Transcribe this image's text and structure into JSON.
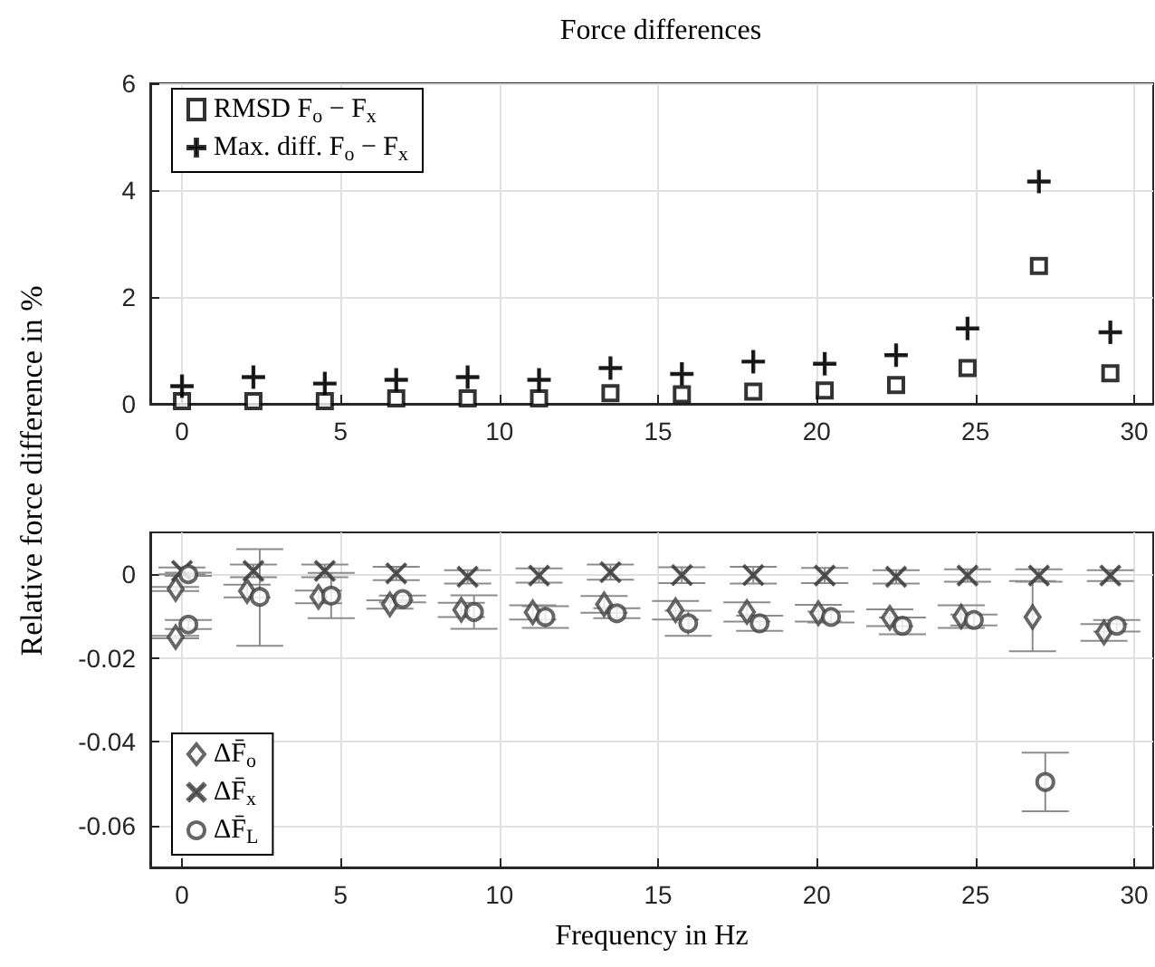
{
  "chart_data": [
    {
      "type": "scatter",
      "title": "Force differences",
      "ylabel": "Relative force difference in %",
      "xlim": [
        -1,
        30.6
      ],
      "xticks": [
        0,
        5,
        10,
        15,
        20,
        25,
        30
      ],
      "ylim": [
        0,
        6
      ],
      "yticks": [
        0,
        2,
        4,
        6
      ],
      "grid": true,
      "legend": "top left",
      "x": [
        0,
        2.25,
        4.5,
        6.75,
        9,
        11.25,
        13.5,
        15.75,
        18,
        20.25,
        22.5,
        24.75,
        27,
        29.25
      ],
      "series": [
        {
          "name": "RMSD F$_{o}$ − F$_{x}$",
          "color": "#000000",
          "marker": "square",
          "values": [
            0.05,
            0.05,
            0.05,
            0.1,
            0.1,
            0.1,
            0.2,
            0.18,
            0.23,
            0.25,
            0.35,
            0.67,
            2.58,
            0.57
          ]
        },
        {
          "name": "Max. diff. F$_{o}$ − F$_{x}$",
          "color": "#000000",
          "marker": "cross",
          "values": [
            0.33,
            0.5,
            0.38,
            0.45,
            0.5,
            0.45,
            0.67,
            0.56,
            0.79,
            0.75,
            0.91,
            1.41,
            4.16,
            1.34
          ]
        }
      ]
    },
    {
      "type": "scatter",
      "xlabel": "Frequency in Hz",
      "xlim": [
        -1,
        30.6
      ],
      "xticks": [
        0,
        5,
        10,
        15,
        20,
        25,
        30
      ],
      "ylim": [
        -0.07,
        0.01
      ],
      "yticks": [
        0,
        -0.02,
        -0.04,
        -0.06
      ],
      "grid": true,
      "legend": "bottom left",
      "series": [
        {
          "name": "ΔF̄$_{o}$",
          "color": "#404040",
          "marker": "diamond",
          "x": [
            -0.2,
            -0.2,
            2.05,
            4.3,
            6.55,
            8.8,
            11.05,
            13.3,
            15.55,
            17.8,
            20.05,
            22.3,
            24.55,
            26.8,
            29.05
          ],
          "values": [
            -0.0035,
            -0.015,
            -0.004,
            -0.0054,
            -0.0072,
            -0.0085,
            -0.0091,
            -0.0072,
            -0.0086,
            -0.009,
            -0.0093,
            -0.0104,
            -0.0101,
            -0.0102,
            -0.0139
          ],
          "errors": [
            0.0005,
            0.0003,
            0.0015,
            0.0015,
            0.001,
            0.0017,
            0.0017,
            0.002,
            0.0022,
            0.0023,
            0.002,
            0.002,
            0.0027,
            [
              -0.0184,
              -0.0016
            ],
            0.002
          ]
        },
        {
          "name": "ΔF̄$_{x}$",
          "color": "#404040",
          "marker": "x",
          "x": [
            0,
            2.25,
            4.5,
            6.75,
            9,
            11.25,
            13.5,
            15.75,
            18,
            20.25,
            22.5,
            24.75,
            27,
            29.25
          ],
          "values": [
            0.0008,
            0.0008,
            0.0008,
            0.0002,
            -0.0006,
            -0.0003,
            0.0005,
            -0.0002,
            -0.0002,
            -0.0003,
            -0.0006,
            -0.0003,
            -0.0003,
            -0.0003
          ],
          "errors": [
            0.0008,
            0.0015,
            0.0015,
            0.0016,
            0.0016,
            0.0017,
            0.0018,
            0.0019,
            0.002,
            0.0018,
            0.0016,
            0.0015,
            0.0015,
            0.0013
          ]
        },
        {
          "name": "ΔF̄$_{L}$",
          "color": "#404040",
          "marker": "circle",
          "x": [
            0.2,
            0.2,
            2.45,
            4.7,
            6.95,
            9.2,
            11.45,
            13.7,
            15.95,
            18.2,
            20.45,
            22.7,
            24.95,
            27.2,
            29.45
          ],
          "values": [
            0,
            -0.012,
            -0.0054,
            -0.0051,
            -0.0059,
            -0.009,
            -0.0102,
            -0.0093,
            -0.0117,
            -0.0117,
            -0.0102,
            -0.0123,
            -0.0109,
            -0.0496,
            -0.0123
          ],
          "errors": [
            0.0004,
            0.0011,
            [
              -0.0171,
              0.006
            ],
            0.0054,
            0.0008,
            0.004,
            0.0026,
            0.0012,
            0.003,
            0.0018,
            0.0013,
            0.002,
            0.0013,
            0.007,
            0.0014
          ]
        }
      ]
    }
  ]
}
